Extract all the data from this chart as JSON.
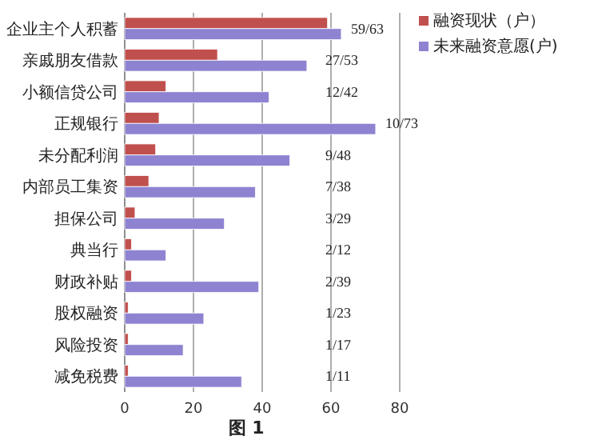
{
  "chart_data": {
    "type": "bar",
    "orientation": "horizontal",
    "categories": [
      "企业主个人积蓄",
      "亲戚朋友借款",
      "小额信贷公司",
      "正规银行",
      "未分配利润",
      "内部员工集资",
      "担保公司",
      "典当行",
      "财政补贴",
      "股权融资",
      "风险投资",
      "减免税费"
    ],
    "series": [
      {
        "name": "融资现状（户）",
        "color": "#c0504d",
        "values": [
          59,
          27,
          12,
          10,
          9,
          7,
          3,
          2,
          2,
          1,
          1,
          1
        ]
      },
      {
        "name": "未来融资意愿(户)",
        "color": "#8e83d1",
        "values": [
          63,
          53,
          42,
          73,
          48,
          38,
          29,
          12,
          39,
          23,
          17,
          34
        ]
      }
    ],
    "xlim": [
      0,
      80
    ],
    "xticks": [
      0,
      20,
      40,
      60,
      80
    ],
    "grid": "x",
    "legend": "top right",
    "annotations": [
      "59/63",
      "27/53",
      "12/42",
      "10/73",
      "9/48",
      "7/38",
      "3/29",
      "2/12",
      "2/39",
      "1/23",
      "1/17",
      "1/11",
      "图 1"
    ]
  }
}
